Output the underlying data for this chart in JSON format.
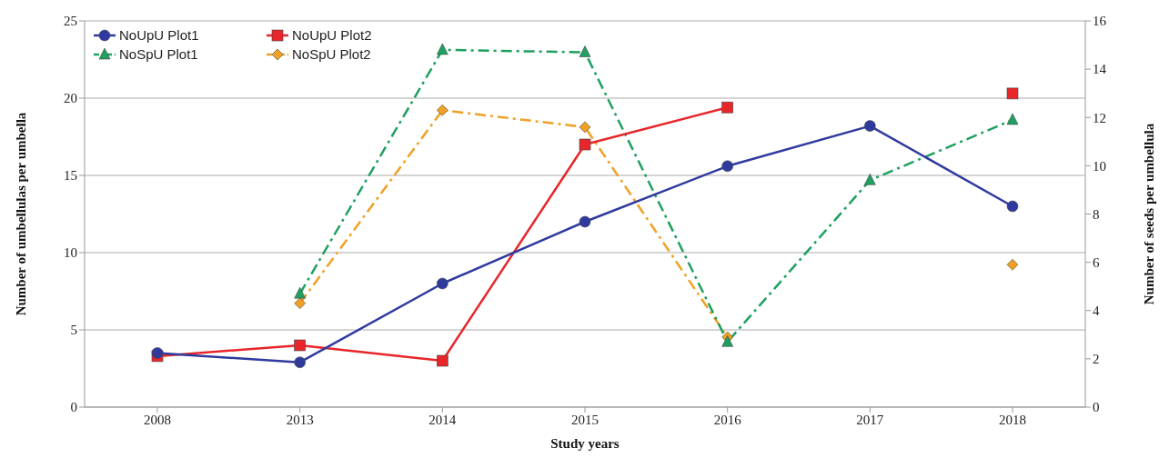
{
  "chart_data": {
    "type": "line",
    "xlabel": "Study years",
    "ylabel": "Number of umbellulas per umbella",
    "y2label": "Number of seeds per umbellula",
    "categories": [
      "2008",
      "2013",
      "2014",
      "2015",
      "2016",
      "2017",
      "2018"
    ],
    "series": [
      {
        "name": "NoUpU Plot1",
        "color": "#2e3a9e",
        "marker": "circle",
        "line_style": "solid",
        "values": [
          3.5,
          2.9,
          8.0,
          12.0,
          15.6,
          18.2,
          13.0
        ]
      },
      {
        "name": "NoUpU Plot2",
        "color": "#e8262a",
        "marker": "square",
        "line_style": "solid",
        "values": [
          3.3,
          4.0,
          3.0,
          17.0,
          19.4,
          null,
          20.3
        ]
      },
      {
        "name": "NoSpU Plot1",
        "color": "#1fa060",
        "marker": "triangle",
        "line_style": "dashed",
        "axis": "y2",
        "values": [
          null,
          4.7,
          14.8,
          14.7,
          2.7,
          9.4,
          11.9
        ]
      },
      {
        "name": "NoSpU Plot2",
        "color": "#f0a024",
        "marker": "diamond",
        "line_style": "dashed",
        "axis": "y2",
        "values": [
          null,
          4.3,
          12.3,
          11.6,
          2.9,
          null,
          5.9
        ]
      }
    ],
    "ylim": [
      0,
      25
    ],
    "yticks": [
      0,
      5,
      10,
      15,
      20,
      25
    ],
    "y2lim": [
      0,
      16
    ],
    "y2ticks": [
      0,
      2,
      4,
      6,
      8,
      10,
      12,
      14,
      16
    ],
    "grid": "y",
    "legend": "top left"
  }
}
